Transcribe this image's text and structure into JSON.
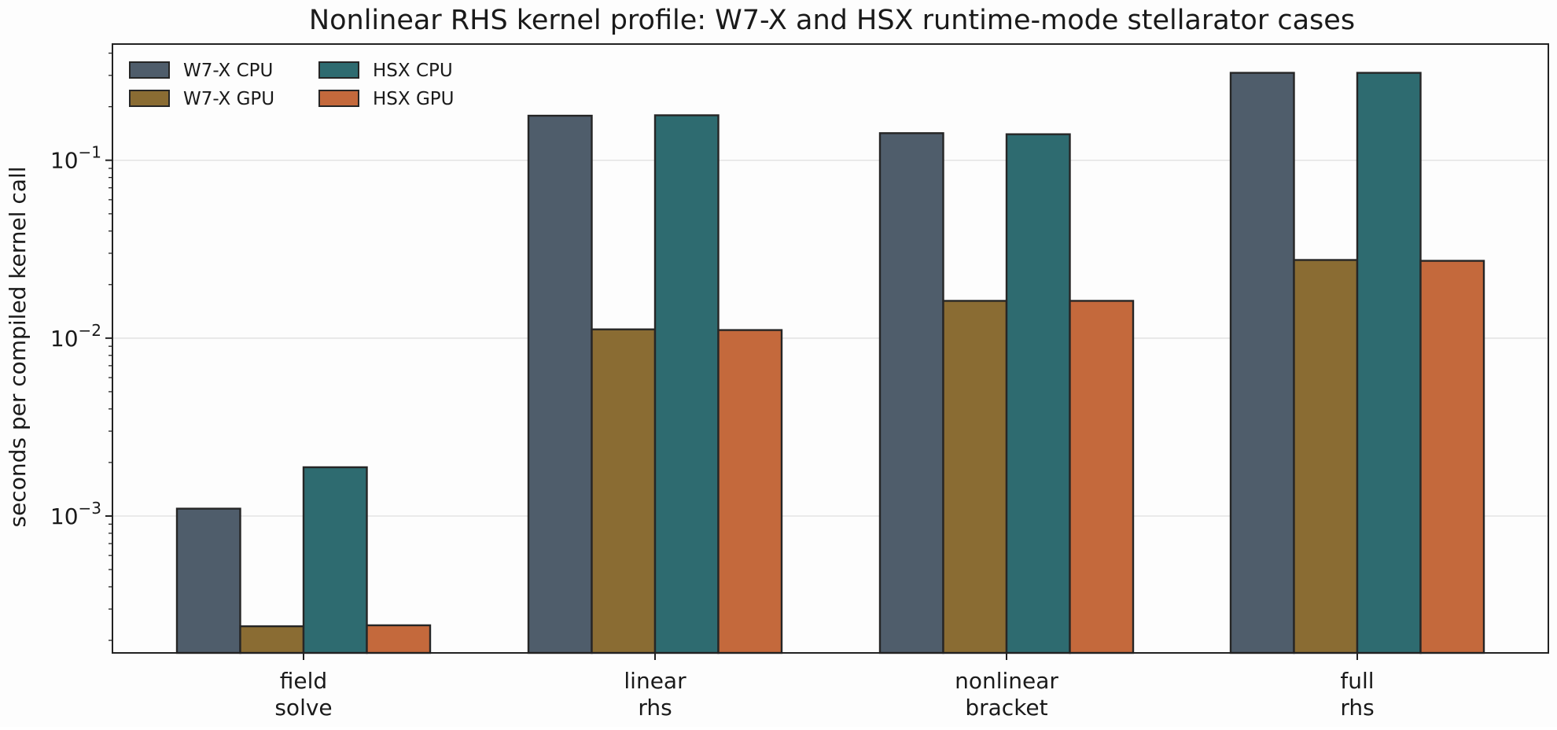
{
  "chart_data": {
    "type": "bar",
    "title": "Nonlinear RHS kernel profile: W7-X and HSX runtime-mode stellarator cases",
    "xlabel": "",
    "ylabel": "seconds per compiled kernel call",
    "yscale": "log",
    "ylim": [
      0.00017,
      0.45
    ],
    "yticks": [
      {
        "value": 0.001,
        "base": "10",
        "exp": "−3"
      },
      {
        "value": 0.01,
        "base": "10",
        "exp": "−2"
      },
      {
        "value": 0.1,
        "base": "10",
        "exp": "−1"
      }
    ],
    "grid": true,
    "legend_position": "top-left",
    "categories": [
      [
        "field",
        "solve"
      ],
      [
        "linear",
        "rhs"
      ],
      [
        "nonlinear",
        "bracket"
      ],
      [
        "full",
        "rhs"
      ]
    ],
    "series": [
      {
        "name": "W7-X CPU",
        "color": "#4f5d6b",
        "values": [
          0.0011,
          0.178,
          0.142,
          0.31
        ]
      },
      {
        "name": "W7-X GPU",
        "color": "#8a6c33",
        "values": [
          0.00024,
          0.0112,
          0.0162,
          0.0275
        ]
      },
      {
        "name": "HSX CPU",
        "color": "#2e6b70",
        "values": [
          0.00188,
          0.179,
          0.14,
          0.31
        ]
      },
      {
        "name": "HSX GPU",
        "color": "#c4693c",
        "values": [
          0.000243,
          0.0111,
          0.0162,
          0.0272
        ]
      }
    ]
  }
}
